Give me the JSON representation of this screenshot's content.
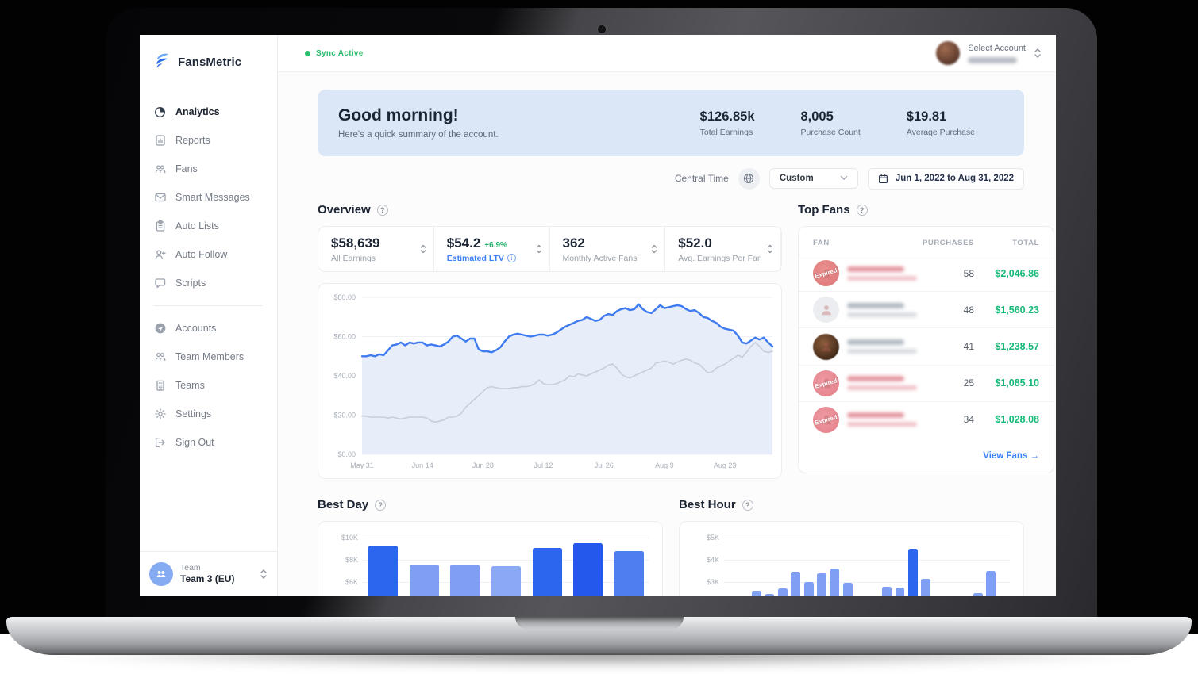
{
  "sidebar": {
    "brand": "FansMetric",
    "primary": [
      {
        "label": "Analytics",
        "icon": "analytics",
        "active": true
      },
      {
        "label": "Reports",
        "icon": "reports",
        "active": false
      },
      {
        "label": "Fans",
        "icon": "fans",
        "active": false
      },
      {
        "label": "Smart Messages",
        "icon": "messages",
        "active": false
      },
      {
        "label": "Auto Lists",
        "icon": "lists",
        "active": false
      },
      {
        "label": "Auto Follow",
        "icon": "follow",
        "active": false
      },
      {
        "label": "Scripts",
        "icon": "scripts",
        "active": false
      }
    ],
    "secondary": [
      {
        "label": "Accounts",
        "icon": "accounts",
        "active": false
      },
      {
        "label": "Team Members",
        "icon": "members",
        "active": false
      },
      {
        "label": "Teams",
        "icon": "teams",
        "active": false
      },
      {
        "label": "Settings",
        "icon": "settings",
        "active": false
      },
      {
        "label": "Sign Out",
        "icon": "signout",
        "active": false
      }
    ],
    "team_label": "Team",
    "team_name": "Team 3 (EU)"
  },
  "topbar": {
    "sync_label": "Sync Active",
    "account_label": "Select Account"
  },
  "banner": {
    "greeting": "Good morning!",
    "subtitle": "Here's a quick summary of the account.",
    "stats": [
      {
        "value": "$126.85k",
        "label": "Total Earnings"
      },
      {
        "value": "8,005",
        "label": "Purchase Count"
      },
      {
        "value": "$19.81",
        "label": "Average Purchase"
      }
    ]
  },
  "filters": {
    "timezone": "Central Time",
    "range_preset": "Custom",
    "date_range": "Jun 1, 2022 to Aug 31, 2022"
  },
  "overview": {
    "title": "Overview",
    "stats": [
      {
        "value": "$58,639",
        "delta": "",
        "label": "All Earnings",
        "style": "plain"
      },
      {
        "value": "$54.2",
        "delta": "+6.9%",
        "label": "Estimated LTV",
        "style": "link"
      },
      {
        "value": "362",
        "delta": "",
        "label": "Monthly Active Fans",
        "style": "plain"
      },
      {
        "value": "$52.0",
        "delta": "",
        "label": "Avg. Earnings Per Fan",
        "style": "plain"
      }
    ]
  },
  "top_fans": {
    "title": "Top Fans",
    "columns": {
      "fan": "FAN",
      "purchases": "PURCHASES",
      "total": "TOTAL"
    },
    "expired_badge": "Expired",
    "view_link": "View Fans →",
    "rows": [
      {
        "purchases": "58",
        "total": "$2,046.86",
        "avatar": "expired-red",
        "expired": true,
        "name_tint": "red"
      },
      {
        "purchases": "48",
        "total": "$1,560.23",
        "avatar": "gray-person",
        "expired": false,
        "name_tint": "gray"
      },
      {
        "purchases": "41",
        "total": "$1,238.57",
        "avatar": "photo",
        "expired": false,
        "name_tint": "gray"
      },
      {
        "purchases": "25",
        "total": "$1,085.10",
        "avatar": "expired-pink",
        "expired": true,
        "name_tint": "red"
      },
      {
        "purchases": "34",
        "total": "$1,028.08",
        "avatar": "expired-pink",
        "expired": true,
        "name_tint": "red"
      }
    ]
  },
  "sections": {
    "best_day_title": "Best Day",
    "best_hour_title": "Best Hour"
  },
  "colors": {
    "accent_blue": "#3b82f6",
    "money_green": "#17b978",
    "sync_green": "#2dbd6e",
    "banner_bg": "#dbe7f7",
    "bar_dark_blue": "#2d66ee",
    "bar_light_blue": "#7e9ff4"
  },
  "chart_data": [
    {
      "id": "overview",
      "type": "line",
      "title": "Overview earnings per day ($)",
      "ylim": [
        0,
        86
      ],
      "grid": true,
      "legend_position": "none",
      "y_ticks": [
        {
          "v": 80,
          "label": "$80.00"
        },
        {
          "v": 60,
          "label": "$60.00"
        },
        {
          "v": 40,
          "label": "$40.00"
        },
        {
          "v": 20,
          "label": "$20.00"
        },
        {
          "v": 0,
          "label": "$0.00"
        }
      ],
      "x_ticks": [
        {
          "i": 0,
          "label": "May 31"
        },
        {
          "i": 14,
          "label": "Jun 14"
        },
        {
          "i": 28,
          "label": "Jun 28"
        },
        {
          "i": 42,
          "label": "Jul 12"
        },
        {
          "i": 56,
          "label": "Jul 26"
        },
        {
          "i": 70,
          "label": "Aug 9"
        },
        {
          "i": 84,
          "label": "Aug 23"
        }
      ],
      "area_fill": "#e8eef9",
      "series": [
        {
          "name": "primary",
          "color": "#3f7bf0",
          "width": 2.4,
          "values": [
            50,
            50,
            50.5,
            50,
            51,
            50.5,
            53,
            55.5,
            56,
            57,
            55.5,
            57,
            56.5,
            57,
            57,
            55.5,
            56,
            55.5,
            55,
            56,
            57.5,
            60,
            60.5,
            59,
            57.5,
            59,
            59,
            53.5,
            52.5,
            52.5,
            52,
            53,
            54.5,
            57.5,
            60,
            61,
            61.5,
            61,
            60.5,
            60,
            60.5,
            61,
            61,
            60.5,
            61,
            62,
            63.5,
            65,
            66,
            67,
            68,
            68.5,
            70,
            69,
            68,
            68.5,
            70.5,
            71.5,
            71,
            73,
            74,
            74.5,
            73.5,
            74,
            76.5,
            74,
            72.5,
            72,
            74,
            76,
            74.5,
            75,
            75.5,
            76,
            75.5,
            74,
            73,
            73.5,
            72,
            70,
            69.5,
            68,
            67,
            65,
            64,
            63.5,
            63,
            60.5,
            57,
            56.5,
            58,
            59.5,
            58.5,
            59.5,
            57,
            55
          ]
        },
        {
          "name": "secondary",
          "color": "#c6cedb",
          "width": 1.6,
          "values": [
            19.5,
            19.5,
            19,
            19,
            19,
            19,
            18.5,
            19,
            18.5,
            18,
            18.5,
            19,
            19,
            19,
            19,
            18.5,
            17,
            16.5,
            17,
            17.5,
            19,
            19,
            19.5,
            21,
            24,
            26,
            28,
            30,
            32,
            34,
            34.5,
            34,
            33.5,
            33.5,
            33.5,
            34,
            34,
            34.5,
            34.5,
            35,
            36,
            38,
            36,
            35.5,
            35.5,
            36,
            37,
            38,
            40,
            39.5,
            41,
            40.5,
            40,
            41,
            42,
            43,
            44,
            45.5,
            46,
            44,
            41,
            39.5,
            39,
            40,
            41,
            42,
            43,
            44,
            46.5,
            47,
            47.5,
            47,
            46,
            47,
            48,
            48.5,
            48,
            46.5,
            46,
            44,
            41.5,
            42,
            44,
            45,
            46,
            47.5,
            49,
            50.5,
            49.5,
            52,
            55,
            57,
            55,
            52.5,
            52,
            52.5
          ]
        }
      ]
    },
    {
      "id": "best_day",
      "type": "bar",
      "title": "Best Day ($ per weekday)",
      "max_k": 10,
      "y_ticks": [
        {
          "v": 10,
          "label": "$10K"
        },
        {
          "v": 8,
          "label": "$8K"
        },
        {
          "v": 6,
          "label": "$6K"
        }
      ],
      "values_k": [
        9.3,
        7.6,
        7.6,
        7.4,
        9.1,
        9.5,
        8.8
      ],
      "colors": [
        "#2d66ee",
        "#7e9ff4",
        "#7e9ff4",
        "#8aa8f6",
        "#2d66ee",
        "#2458ec",
        "#4f7ef1"
      ]
    },
    {
      "id": "best_hour",
      "type": "bar",
      "title": "Best Hour ($ per hour)",
      "max_k": 5,
      "y_ticks": [
        {
          "v": 5,
          "label": "$5K"
        },
        {
          "v": 4,
          "label": "$4K"
        },
        {
          "v": 3,
          "label": "$3K"
        }
      ],
      "values_k": [
        2.3,
        0,
        2.6,
        2.45,
        2.7,
        3.45,
        3.0,
        3.4,
        3.6,
        2.95,
        2.2,
        0,
        2.8,
        2.75,
        4.5,
        3.15,
        0,
        0,
        0,
        2.5,
        3.5,
        2.05
      ],
      "colors": [
        "#7e9ff4",
        "#7e9ff4",
        "#7e9ff4",
        "#7e9ff4",
        "#7e9ff4",
        "#7e9ff4",
        "#7e9ff4",
        "#7e9ff4",
        "#7e9ff4",
        "#7e9ff4",
        "#7e9ff4",
        "#7e9ff4",
        "#7e9ff4",
        "#7e9ff4",
        "#2d66ee",
        "#7e9ff4",
        "#7e9ff4",
        "#7e9ff4",
        "#7e9ff4",
        "#7e9ff4",
        "#7e9ff4",
        "#7e9ff4"
      ]
    }
  ]
}
